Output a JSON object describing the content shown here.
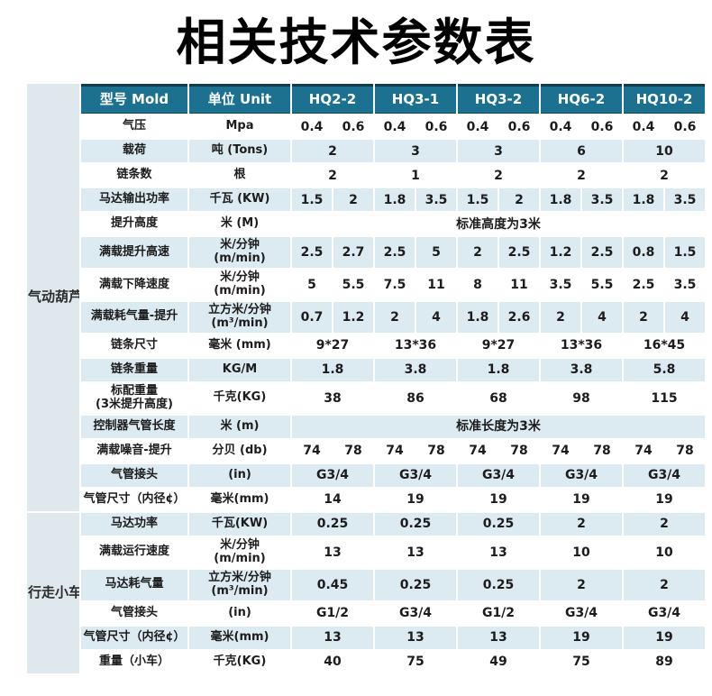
{
  "title": "相关技术参数表",
  "colors": {
    "header_bg": "#1c7190",
    "header_text": "#ffffff",
    "header_top_border": "#0e3d4d",
    "row_bg": "#ffffff",
    "row_alt_bg": "#dcebf1",
    "section_bg": "#dfe9ed",
    "title_color": "#000000",
    "text_color": "#1c1c1c"
  },
  "table": {
    "header": {
      "model": "型号 Mold",
      "unit": "单位 Unit",
      "models": [
        "HQ2-2",
        "HQ3-1",
        "HQ3-2",
        "HQ6-2",
        "HQ10-2"
      ]
    },
    "sections": [
      {
        "label": "气动葫芦",
        "rows": [
          {
            "label": [
              "气压"
            ],
            "unit": [
              "Mpa"
            ],
            "cells": [
              [
                1,
                "0.4"
              ],
              [
                1,
                "0.6"
              ],
              [
                1,
                "0.4"
              ],
              [
                1,
                "0.6"
              ],
              [
                1,
                "0.4"
              ],
              [
                1,
                "0.6"
              ],
              [
                1,
                "0.4"
              ],
              [
                1,
                "0.6"
              ],
              [
                1,
                "0.4"
              ],
              [
                1,
                "0.6"
              ]
            ]
          },
          {
            "label": [
              "载荷"
            ],
            "unit": [
              "吨 (Tons)"
            ],
            "cells": [
              [
                2,
                "2"
              ],
              [
                2,
                "3"
              ],
              [
                2,
                "3"
              ],
              [
                2,
                "6"
              ],
              [
                2,
                "10"
              ]
            ]
          },
          {
            "label": [
              "链条数"
            ],
            "unit": [
              "根"
            ],
            "cells": [
              [
                2,
                "2"
              ],
              [
                2,
                "1"
              ],
              [
                2,
                "2"
              ],
              [
                2,
                "2"
              ],
              [
                2,
                "2"
              ]
            ]
          },
          {
            "label": [
              "马达输出功率"
            ],
            "unit": [
              "千瓦 (KW)"
            ],
            "cells": [
              [
                1,
                "1.5"
              ],
              [
                1,
                "2"
              ],
              [
                1,
                "1.8"
              ],
              [
                1,
                "3.5"
              ],
              [
                1,
                "1.5"
              ],
              [
                1,
                "2"
              ],
              [
                1,
                "1.8"
              ],
              [
                1,
                "3.5"
              ],
              [
                1,
                "1.8"
              ],
              [
                1,
                "3.5"
              ]
            ]
          },
          {
            "label": [
              "提升高度"
            ],
            "unit": [
              "米 (M)"
            ],
            "cells": [
              [
                10,
                "标准高度为3米"
              ]
            ]
          },
          {
            "label": [
              "满载提升高速"
            ],
            "unit": [
              "米/分钟",
              "(m/min)"
            ],
            "cells": [
              [
                1,
                "2.5"
              ],
              [
                1,
                "2.7"
              ],
              [
                1,
                "2.5"
              ],
              [
                1,
                "5"
              ],
              [
                1,
                "2"
              ],
              [
                1,
                "2.5"
              ],
              [
                1,
                "1.2"
              ],
              [
                1,
                "2.5"
              ],
              [
                1,
                "0.8"
              ],
              [
                1,
                "1.5"
              ]
            ]
          },
          {
            "label": [
              "满载下降速度"
            ],
            "unit": [
              "米/分钟",
              "(m/min)"
            ],
            "cells": [
              [
                1,
                "5"
              ],
              [
                1,
                "5.5"
              ],
              [
                1,
                "7.5"
              ],
              [
                1,
                "11"
              ],
              [
                1,
                "8"
              ],
              [
                1,
                "11"
              ],
              [
                1,
                "3.5"
              ],
              [
                1,
                "5.5"
              ],
              [
                1,
                "2.5"
              ],
              [
                1,
                "3.5"
              ]
            ]
          },
          {
            "label": [
              "满载耗气量-提升"
            ],
            "unit": [
              "立方米/分钟",
              "(m³/min)"
            ],
            "cells": [
              [
                1,
                "0.7"
              ],
              [
                1,
                "1.2"
              ],
              [
                1,
                "2"
              ],
              [
                1,
                "4"
              ],
              [
                1,
                "1.8"
              ],
              [
                1,
                "2.6"
              ],
              [
                1,
                "2"
              ],
              [
                1,
                "4"
              ],
              [
                1,
                "2"
              ],
              [
                1,
                "4"
              ]
            ]
          },
          {
            "label": [
              "链条尺寸"
            ],
            "unit": [
              "毫米 (mm)"
            ],
            "cells": [
              [
                2,
                "9*27"
              ],
              [
                2,
                "13*36"
              ],
              [
                2,
                "9*27"
              ],
              [
                2,
                "13*36"
              ],
              [
                2,
                "16*45"
              ]
            ]
          },
          {
            "label": [
              "链条重量"
            ],
            "unit": [
              "KG/M"
            ],
            "cells": [
              [
                2,
                "1.8"
              ],
              [
                2,
                "3.8"
              ],
              [
                2,
                "1.8"
              ],
              [
                2,
                "3.8"
              ],
              [
                2,
                "5.8"
              ]
            ]
          },
          {
            "label": [
              "标配重量",
              "(3米提升高度)"
            ],
            "unit": [
              "千克(KG)"
            ],
            "cells": [
              [
                2,
                "38"
              ],
              [
                2,
                "86"
              ],
              [
                2,
                "68"
              ],
              [
                2,
                "98"
              ],
              [
                2,
                "115"
              ]
            ]
          },
          {
            "label": [
              "控制器气管长度"
            ],
            "unit": [
              "米 (m)"
            ],
            "cells": [
              [
                10,
                "标准长度为3米"
              ]
            ]
          },
          {
            "label": [
              "满载噪音-提升"
            ],
            "unit": [
              "分贝 (db)"
            ],
            "cells": [
              [
                1,
                "74"
              ],
              [
                1,
                "78"
              ],
              [
                1,
                "74"
              ],
              [
                1,
                "78"
              ],
              [
                1,
                "74"
              ],
              [
                1,
                "78"
              ],
              [
                1,
                "74"
              ],
              [
                1,
                "78"
              ],
              [
                1,
                "74"
              ],
              [
                1,
                "78"
              ]
            ]
          },
          {
            "label": [
              "气管接头"
            ],
            "unit": [
              "(in)"
            ],
            "cells": [
              [
                2,
                "G3/4"
              ],
              [
                2,
                "G3/4"
              ],
              [
                2,
                "G3/4"
              ],
              [
                2,
                "G3/4"
              ],
              [
                2,
                "G3/4"
              ]
            ]
          },
          {
            "label": [
              "气管尺寸（内径¢）"
            ],
            "unit": [
              "毫米(mm)"
            ],
            "cells": [
              [
                2,
                "14"
              ],
              [
                2,
                "19"
              ],
              [
                2,
                "19"
              ],
              [
                2,
                "19"
              ],
              [
                2,
                "19"
              ]
            ]
          }
        ]
      },
      {
        "label": "行走小车",
        "rows": [
          {
            "label": [
              "马达功率"
            ],
            "unit": [
              "千瓦(KW)"
            ],
            "cells": [
              [
                2,
                "0.25"
              ],
              [
                2,
                "0.25"
              ],
              [
                2,
                "0.25"
              ],
              [
                2,
                "2"
              ],
              [
                2,
                "2"
              ]
            ]
          },
          {
            "label": [
              "满载运行速度"
            ],
            "unit": [
              "米/分钟",
              "(m/min)"
            ],
            "cells": [
              [
                2,
                "13"
              ],
              [
                2,
                "13"
              ],
              [
                2,
                "13"
              ],
              [
                2,
                "10"
              ],
              [
                2,
                "10"
              ]
            ]
          },
          {
            "label": [
              "马达耗气量"
            ],
            "unit": [
              "立方米/分钟",
              "(m³/min)"
            ],
            "cells": [
              [
                2,
                "0.45"
              ],
              [
                2,
                "0.25"
              ],
              [
                2,
                "0.25"
              ],
              [
                2,
                "2"
              ],
              [
                2,
                "2"
              ]
            ]
          },
          {
            "label": [
              "气管接头"
            ],
            "unit": [
              "(in)"
            ],
            "cells": [
              [
                2,
                "G1/2"
              ],
              [
                2,
                "G3/4"
              ],
              [
                2,
                "G1/2"
              ],
              [
                2,
                "G3/4"
              ],
              [
                2,
                "G3/4"
              ]
            ]
          },
          {
            "label": [
              "气管尺寸（内径¢）"
            ],
            "unit": [
              "毫米(mm)"
            ],
            "cells": [
              [
                2,
                "13"
              ],
              [
                2,
                "13"
              ],
              [
                2,
                "13"
              ],
              [
                2,
                "19"
              ],
              [
                2,
                "19"
              ]
            ]
          },
          {
            "label": [
              "重量（小车）"
            ],
            "unit": [
              "千克(KG)"
            ],
            "cells": [
              [
                2,
                "40"
              ],
              [
                2,
                "75"
              ],
              [
                2,
                "49"
              ],
              [
                2,
                "75"
              ],
              [
                2,
                "89"
              ]
            ]
          }
        ]
      }
    ]
  }
}
